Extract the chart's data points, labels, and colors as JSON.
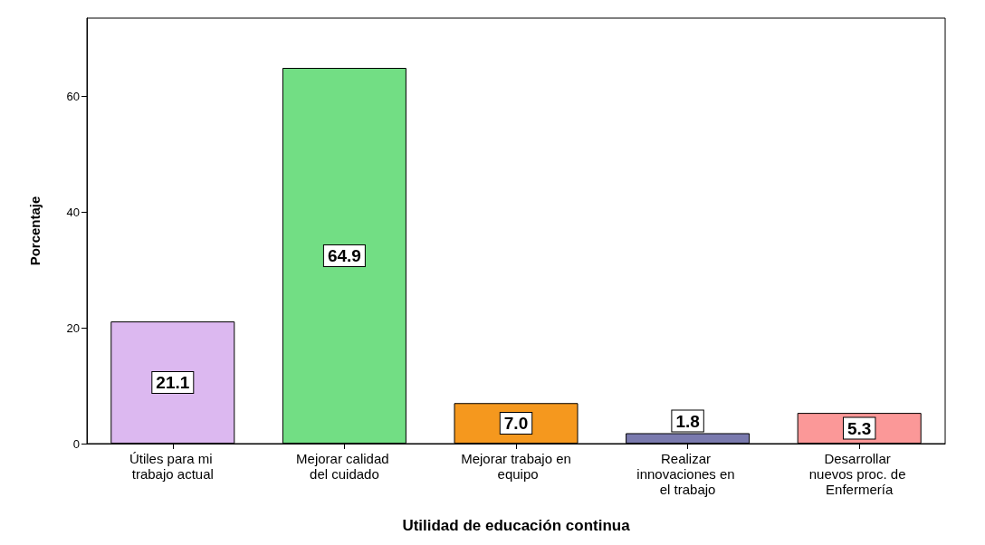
{
  "chart_data": {
    "type": "bar",
    "xlabel": "Utilidad de educación continua",
    "ylabel": "Porcentaje",
    "categories": [
      "Útiles para mi trabajo actual",
      "Mejorar calidad del cuidado",
      "Mejorar trabajo en equipo",
      "Realizar innovaciones en el trabajo",
      "Desarrollar nuevos proc. de Enfermería"
    ],
    "values": [
      21.1,
      64.9,
      7.0,
      1.8,
      5.3
    ],
    "value_labels": [
      "21.1",
      "64.9",
      "7.0",
      "1.8",
      "5.3"
    ],
    "colors": [
      "#dcb8f0",
      "#72de84",
      "#f5981e",
      "#7a7aae",
      "#fb9898"
    ],
    "ylim": [
      0,
      73.5
    ],
    "yticks": [
      0,
      20,
      40,
      60
    ],
    "grid": false
  }
}
